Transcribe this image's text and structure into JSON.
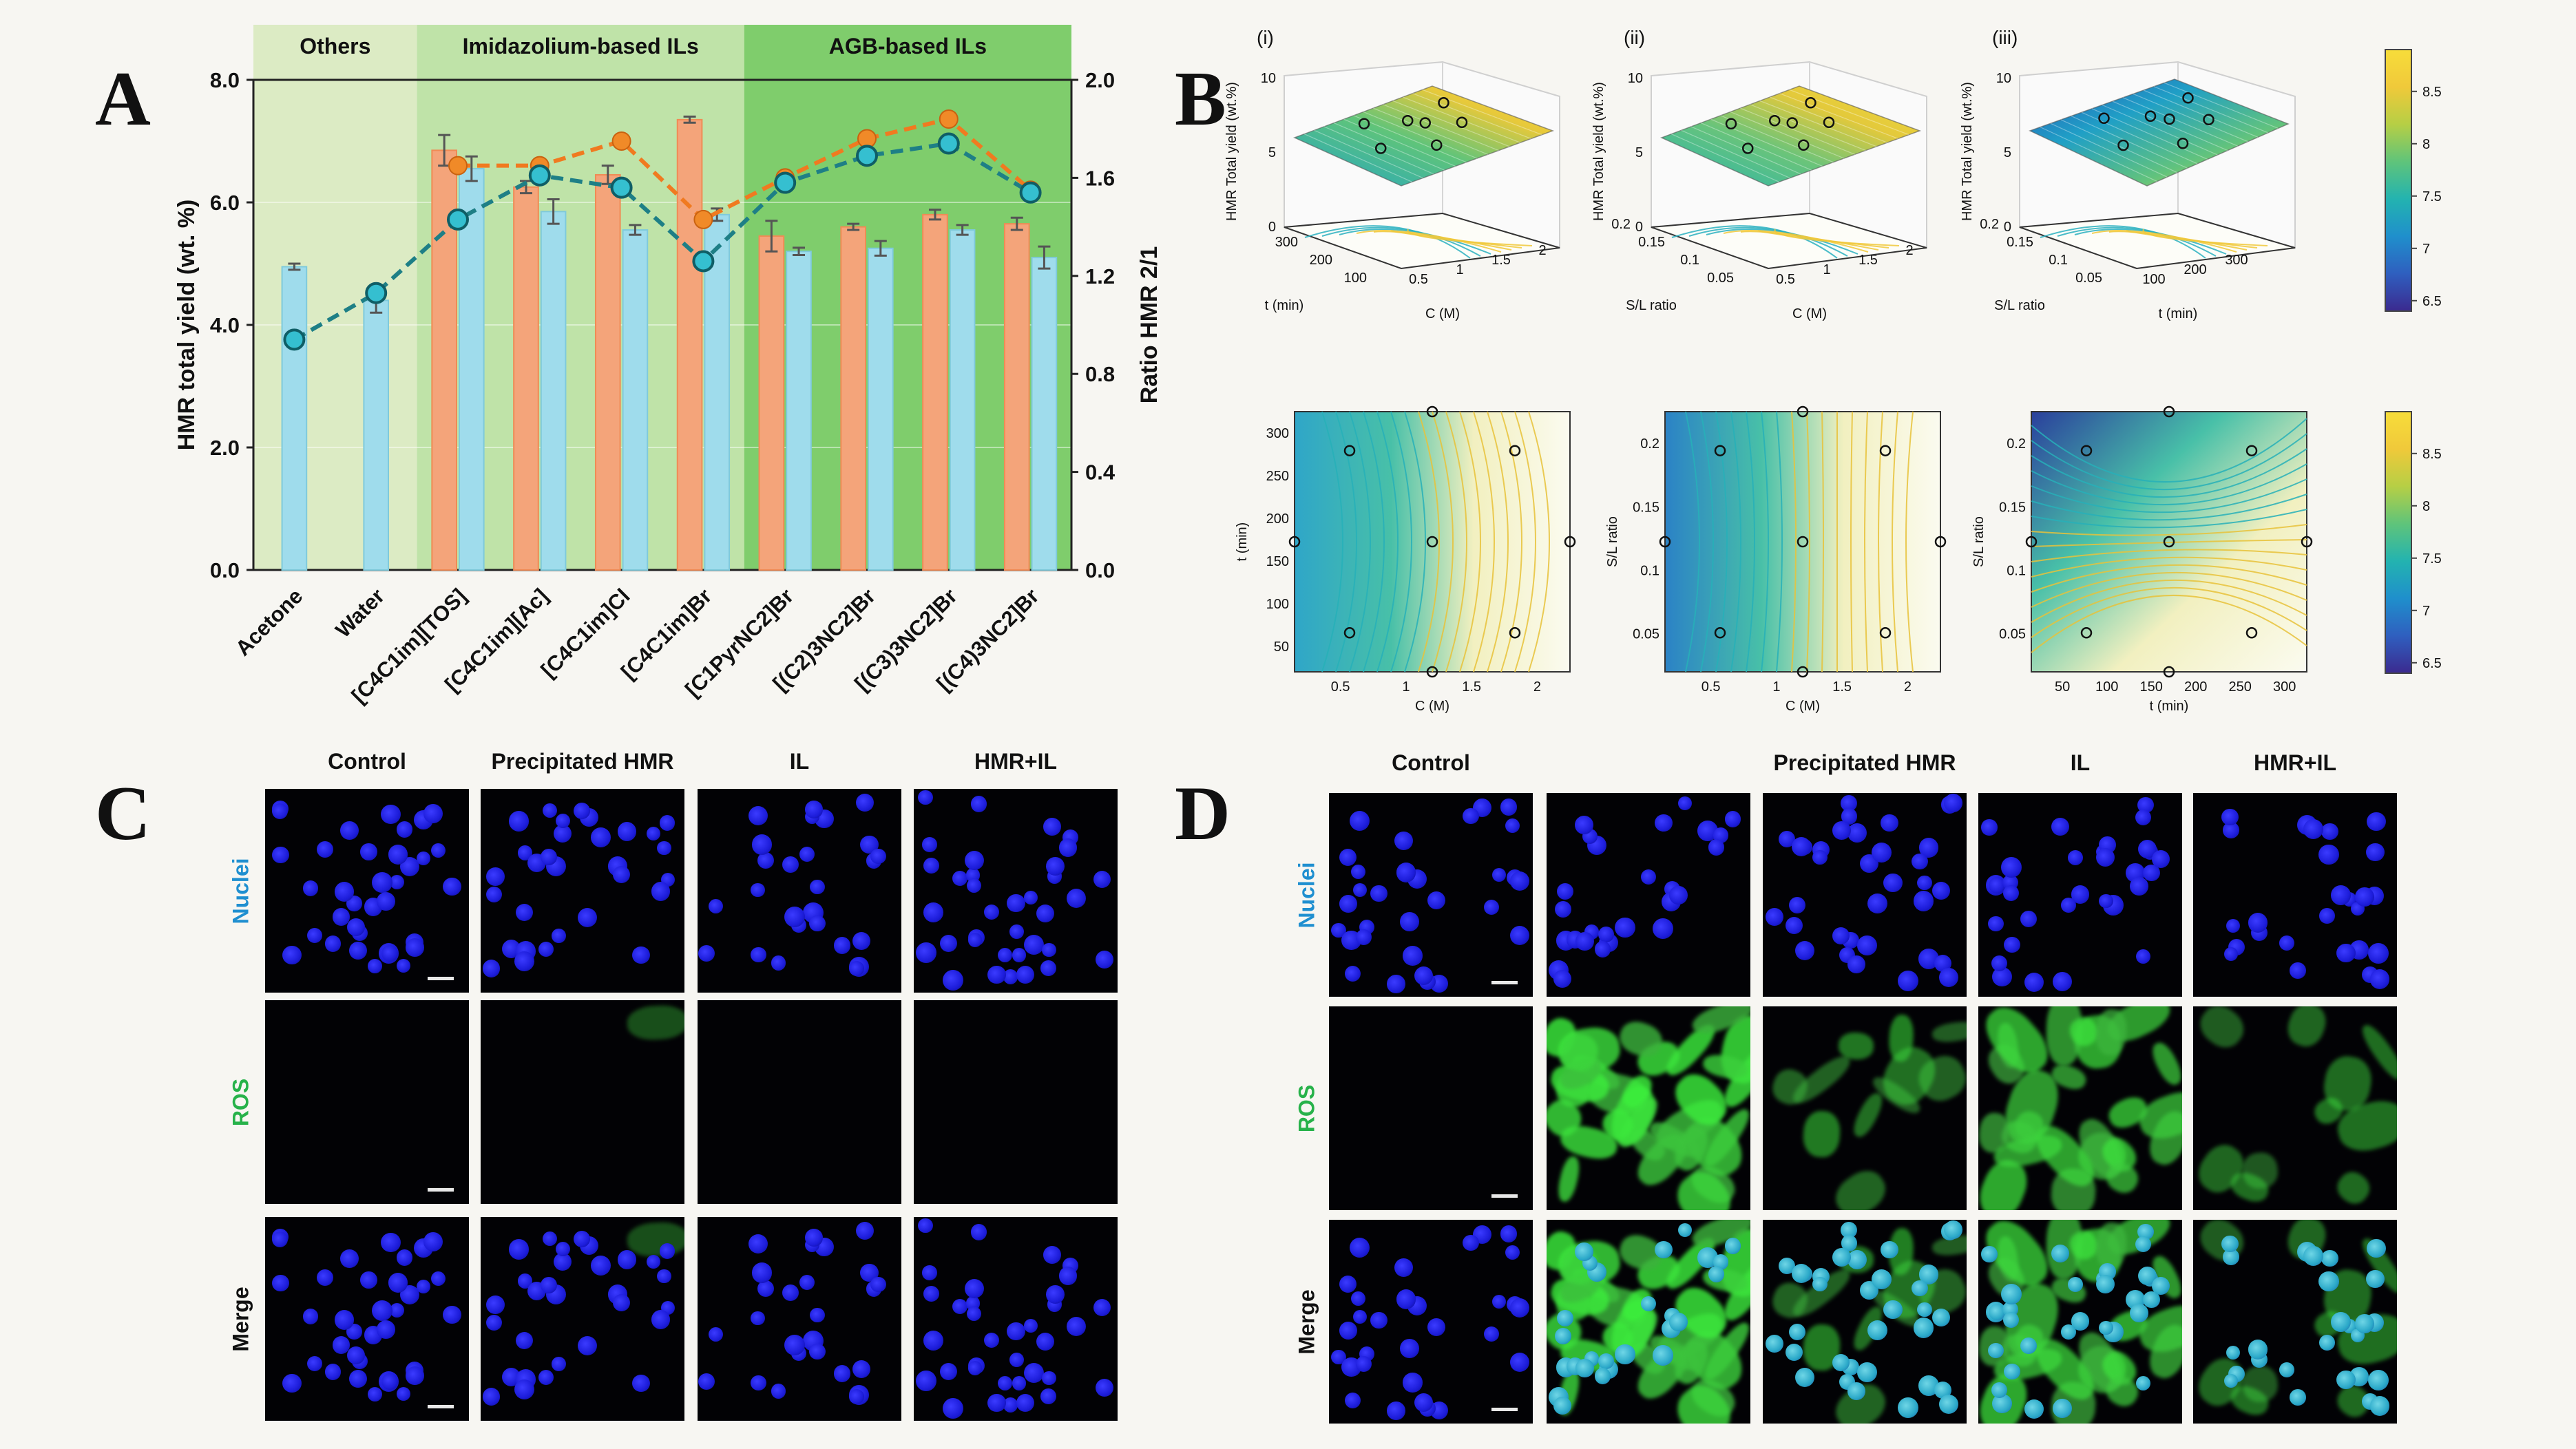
{
  "panels": {
    "A": "A",
    "B": "B",
    "C": "C",
    "D": "D"
  },
  "chart_data": [
    {
      "type": "bar",
      "panel": "A",
      "groups": [
        {
          "label": "Others",
          "color": "#dcebc4",
          "span": [
            0,
            1
          ]
        },
        {
          "label": "Imidazolium-based ILs",
          "color": "#bfe3a8",
          "span": [
            2,
            5
          ]
        },
        {
          "label": "AGB-based ILs",
          "color": "#7fcd6c",
          "span": [
            6,
            9
          ]
        }
      ],
      "categories": [
        "Acetone",
        "Water",
        "[C4C1im][TOS]",
        "[C4C1im][Ac]",
        "[C4C1im]Cl",
        "[C4C1im]Br",
        "[C1PyrNC2]Br",
        "[(C2)3NC2]Br",
        "[(C3)3NC2]Br",
        "[(C4)3NC2]Br"
      ],
      "series": [
        {
          "name": "HMR total yield (orange)",
          "axis": "left",
          "color": "#f4a47a",
          "values": [
            null,
            null,
            6.85,
            6.25,
            6.45,
            7.35,
            5.45,
            5.6,
            5.8,
            5.65
          ],
          "errors": [
            0,
            0,
            0.25,
            0.1,
            0.15,
            0.05,
            0.25,
            0.05,
            0.08,
            0.1
          ]
        },
        {
          "name": "HMR total yield (blue)",
          "axis": "left",
          "color": "#9fdcec",
          "values": [
            4.95,
            4.4,
            6.55,
            5.85,
            5.55,
            5.8,
            5.2,
            5.25,
            5.55,
            5.1
          ],
          "errors": [
            0.05,
            0.2,
            0.2,
            0.2,
            0.08,
            0.1,
            0.06,
            0.12,
            0.08,
            0.18
          ]
        },
        {
          "name": "Ratio HMR 2/1 (orange)",
          "axis": "right",
          "type": "line",
          "color": "#f07a20",
          "values": [
            null,
            null,
            1.65,
            1.65,
            1.75,
            1.43,
            1.6,
            1.76,
            1.84,
            1.55
          ]
        },
        {
          "name": "Ratio HMR 2/1 (teal)",
          "axis": "right",
          "type": "line",
          "color": "#1e7f86",
          "values": [
            0.94,
            1.13,
            1.43,
            1.61,
            1.56,
            1.26,
            1.58,
            1.69,
            1.74,
            1.54
          ]
        }
      ],
      "ylabel": "HMR total yield (wt. %)",
      "ylabel_right": "Ratio HMR 2/1",
      "ylim": [
        0,
        8
      ],
      "ylim_right": [
        0,
        2
      ],
      "yticks": [
        "0.0",
        "2.0",
        "4.0",
        "6.0",
        "8.0"
      ],
      "yticks_right": [
        "0.0",
        "0.4",
        "0.8",
        "1.2",
        "1.6",
        "2.0"
      ]
    },
    {
      "type": "heatmap",
      "panel": "B",
      "subplots_3d": [
        {
          "label": "(i)",
          "xlabel": "C (M)",
          "ylabel": "t (min)",
          "zlabel": "HMR Total yield (wt.%)",
          "zticks": [
            "0",
            "5",
            "10"
          ],
          "xticks": [
            "0.5",
            "1",
            "1.5",
            "2"
          ],
          "yticks": [
            "100",
            "200",
            "300"
          ]
        },
        {
          "label": "(ii)",
          "xlabel": "C (M)",
          "ylabel": "S/L ratio",
          "zlabel": "HMR Total yield (wt.%)",
          "zticks": [
            "0",
            "5",
            "10"
          ],
          "xticks": [
            "0.5",
            "1",
            "1.5",
            "2"
          ],
          "yticks": [
            "0.05",
            "0.1",
            "0.15",
            "0.2"
          ]
        },
        {
          "label": "(iii)",
          "xlabel": "t (min)",
          "ylabel": "S/L ratio",
          "zlabel": "HMR Total yield (wt.%)",
          "zticks": [
            "0",
            "5",
            "10"
          ],
          "xticks": [
            "100",
            "200",
            "300"
          ],
          "yticks": [
            "0.05",
            "0.1",
            "0.15",
            "0.2"
          ]
        }
      ],
      "subplots_contour": [
        {
          "xlabel": "C (M)",
          "ylabel": "t (min)",
          "xticks": [
            "0.5",
            "1",
            "1.5",
            "2"
          ],
          "yticks": [
            "50",
            "100",
            "150",
            "200",
            "250",
            "300"
          ]
        },
        {
          "xlabel": "C (M)",
          "ylabel": "S/L ratio",
          "xticks": [
            "0.5",
            "1",
            "1.5",
            "2"
          ],
          "yticks": [
            "0.05",
            "0.1",
            "0.15",
            "0.2"
          ]
        },
        {
          "xlabel": "t (min)",
          "ylabel": "S/L ratio",
          "xticks": [
            "50",
            "100",
            "150",
            "200",
            "250",
            "300"
          ],
          "yticks": [
            "0.05",
            "0.1",
            "0.15",
            "0.2"
          ]
        }
      ],
      "colorbar_ticks": [
        "6.5",
        "7",
        "7.5",
        "8",
        "8.5"
      ],
      "colorbar_range": [
        6.4,
        8.9
      ]
    }
  ],
  "panelC": {
    "columns": [
      "Control",
      "Precipitated HMR",
      "IL",
      "HMR+IL"
    ],
    "rows": [
      "Nuclei",
      "ROS",
      "Merge"
    ],
    "row_colors": [
      "#1f8fd0",
      "#27b24a",
      "#111111"
    ],
    "ros_intensity": [
      0,
      0.05,
      0,
      0
    ]
  },
  "panelD": {
    "columns": [
      "Control",
      "",
      "Precipitated HMR",
      "IL",
      "HMR+IL"
    ],
    "rows": [
      "Nuclei",
      "ROS",
      "Merge"
    ],
    "row_colors": [
      "#1f8fd0",
      "#27b24a",
      "#111111"
    ],
    "ros_intensity": [
      0,
      0.95,
      0.35,
      0.75,
      0.3
    ]
  }
}
